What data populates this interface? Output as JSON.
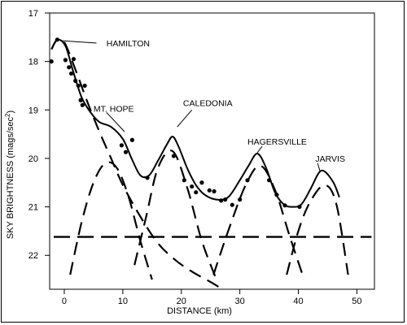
{
  "chart_data": {
    "type": "scatter",
    "title": "",
    "xlabel": "DISTANCE (km)",
    "ylabel_main": "SKY BRIGHTNESS (mags/sec",
    "ylabel_sup": "2",
    "ylabel_close": ")",
    "xlim": [
      -2.5,
      53
    ],
    "ylim": [
      17,
      22.7
    ],
    "y_inverted": true,
    "grid": false,
    "x_ticks": [
      0,
      10,
      20,
      30,
      40,
      50
    ],
    "x_tick_labels": [
      "0",
      "10",
      "20",
      "30",
      "40",
      "50"
    ],
    "y_ticks": [
      17,
      18,
      19,
      20,
      21,
      22
    ],
    "y_tick_labels": [
      "17",
      "18",
      "19",
      "20",
      "21",
      "22"
    ],
    "observed": {
      "x": [
        -2.2,
        -1.2,
        0.2,
        0.8,
        1.2,
        1.6,
        1.9,
        2.4,
        2.8,
        3.1,
        3.5,
        9.8,
        10.5,
        11.6,
        14.2,
        18.7,
        20.5,
        21.8,
        22.5,
        23.5,
        24.8,
        25.6,
        26.8,
        27.5,
        28.7,
        30.0,
        31.3,
        35.0,
        36.3,
        37.7,
        40.2
      ],
      "y": [
        18.0,
        17.55,
        17.97,
        18.12,
        18.25,
        17.95,
        18.4,
        18.5,
        18.8,
        18.9,
        18.5,
        19.73,
        19.87,
        19.62,
        20.4,
        19.95,
        20.45,
        20.58,
        20.7,
        20.5,
        20.66,
        20.68,
        20.87,
        20.85,
        20.96,
        20.85,
        20.45,
        20.45,
        20.75,
        20.97,
        21.0
      ]
    },
    "total_curve": {
      "x": [
        -2.2,
        -1.2,
        0.2,
        1.5,
        3.0,
        4.5,
        6.0,
        8.0,
        10.0,
        11.5,
        13.0,
        14.5,
        16.0,
        17.5,
        18.5,
        19.5,
        21.0,
        22.5,
        24.0,
        26.0,
        28.0,
        30.0,
        31.5,
        33.0,
        34.5,
        36.0,
        37.5,
        39.0,
        40.5,
        42.0,
        43.5,
        44.5,
        46.0,
        47.0
      ],
      "y": [
        17.75,
        17.55,
        17.68,
        18.2,
        18.75,
        19.05,
        19.25,
        19.35,
        19.6,
        20.0,
        20.35,
        20.35,
        20.05,
        19.72,
        19.55,
        19.75,
        20.2,
        20.55,
        20.75,
        20.85,
        20.8,
        20.45,
        20.15,
        19.9,
        20.2,
        20.7,
        20.95,
        21.0,
        20.95,
        20.65,
        20.3,
        20.27,
        20.5,
        20.8
      ]
    },
    "background_level": 21.62,
    "components": [
      {
        "name": "HAMILTON",
        "x": [
          -2.2,
          -1.2,
          0.0,
          2.0,
          4.0,
          6.0,
          8.0,
          10.0,
          13.0,
          16.0,
          19.0,
          22.0,
          25.0,
          27.0
        ],
        "y": [
          17.75,
          17.55,
          17.6,
          18.2,
          18.85,
          19.45,
          20.0,
          20.55,
          21.2,
          21.75,
          22.1,
          22.35,
          22.55,
          22.7
        ]
      },
      {
        "name": "MT. HOPE",
        "x": [
          1.0,
          3.0,
          5.0,
          7.0,
          9.0,
          11.0,
          13.0,
          15.0
        ],
        "y": [
          22.4,
          21.3,
          20.5,
          20.1,
          20.2,
          20.8,
          21.7,
          22.5
        ]
      },
      {
        "name": "CALEDONIA",
        "x": [
          12.0,
          14.0,
          16.0,
          18.5,
          21.0,
          23.5,
          26.0
        ],
        "y": [
          22.2,
          21.2,
          20.2,
          19.85,
          20.6,
          21.7,
          22.5
        ]
      },
      {
        "name": "HAGERSVILLE",
        "x": [
          25.5,
          28.0,
          31.0,
          33.5,
          36.0,
          38.5,
          41.0
        ],
        "y": [
          22.4,
          21.5,
          20.55,
          20.15,
          20.65,
          21.6,
          22.5
        ]
      },
      {
        "name": "JARVIS",
        "x": [
          38.0,
          40.0,
          42.0,
          44.5,
          46.5,
          48.5
        ],
        "y": [
          22.4,
          21.5,
          20.9,
          20.55,
          20.95,
          22.4
        ]
      }
    ],
    "annotations": [
      {
        "text": "HAMILTON",
        "x": 7.2,
        "y": 17.62,
        "line_x": [
          -0.7,
          5.5
        ],
        "line_y": [
          17.57,
          17.62
        ]
      },
      {
        "text": "MT. HOPE",
        "x": 5.0,
        "y": 18.97,
        "line_x": [
          7.2,
          10.3
        ],
        "line_y": [
          19.05,
          19.45
        ]
      },
      {
        "text": "CALEDONIA",
        "x": 20.3,
        "y": 18.85,
        "line_x": [
          21.8,
          19.3
        ],
        "line_y": [
          19.0,
          19.35
        ]
      },
      {
        "text": "HAGERSVILLE",
        "x": 31.3,
        "y": 19.65,
        "line_x": [
          33.8,
          33.0
        ],
        "line_y": [
          19.75,
          19.88
        ]
      },
      {
        "text": "JARVIS",
        "x": 42.9,
        "y": 20.0,
        "line_x": [
          43.3,
          43.7
        ],
        "line_y": [
          20.1,
          20.27
        ]
      }
    ]
  }
}
